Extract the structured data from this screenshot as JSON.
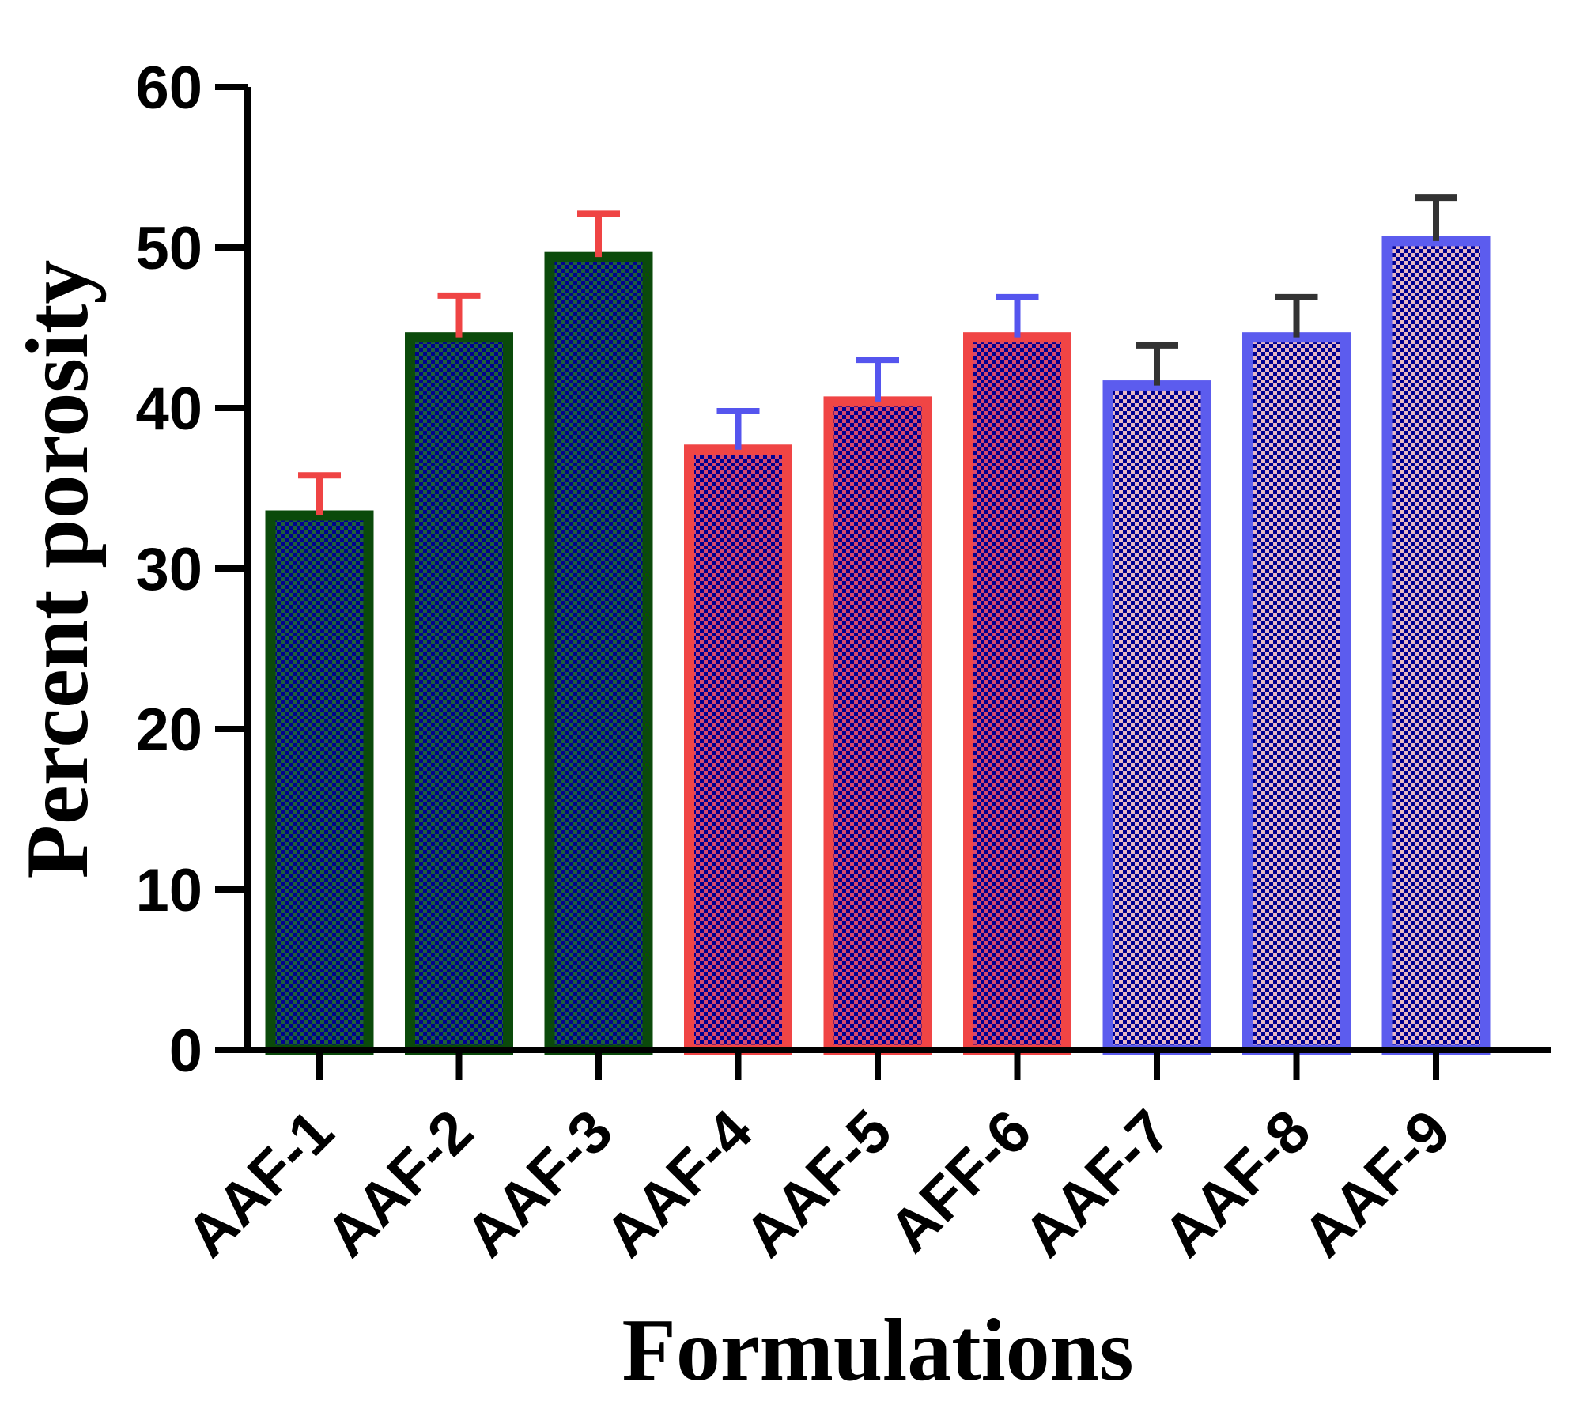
{
  "chart_data": {
    "type": "bar",
    "title": "",
    "xlabel": "Formulations",
    "ylabel": "Percent porosity",
    "ylim": [
      0,
      60
    ],
    "yticks": [
      0,
      10,
      20,
      30,
      40,
      50,
      60
    ],
    "ytick_labels": [
      "0",
      "10",
      "20",
      "30",
      "40",
      "50",
      "60"
    ],
    "grid": false,
    "categories": [
      "AAF-1",
      "AAF-2",
      "AAF-3",
      "AAF-4",
      "AAF-5",
      "AFF-6",
      "AAF-7",
      "AAF-8",
      "AAF-9"
    ],
    "values": [
      33.3,
      44.4,
      49.4,
      37.4,
      40.4,
      44.4,
      41.4,
      44.4,
      50.4
    ],
    "errors": [
      2.5,
      2.6,
      2.7,
      2.4,
      2.6,
      2.5,
      2.5,
      2.5,
      2.7
    ],
    "groups": [
      {
        "members": [
          "AAF-1",
          "AAF-2",
          "AAF-3"
        ],
        "border_color": "#0b4a0b",
        "pattern_light": "#1f5f3a",
        "pattern_dark": "#000090",
        "error_color": "#ef4444"
      },
      {
        "members": [
          "AAF-4",
          "AAF-5",
          "AFF-6"
        ],
        "border_color": "#f04545",
        "pattern_light": "#d64a6e",
        "pattern_dark": "#000090",
        "error_color": "#5555ee"
      },
      {
        "members": [
          "AAF-7",
          "AAF-8",
          "AAF-9"
        ],
        "border_color": "#5c5cee",
        "pattern_light": "#e6b8c4",
        "pattern_dark": "#000090",
        "error_color": "#333333"
      }
    ]
  }
}
